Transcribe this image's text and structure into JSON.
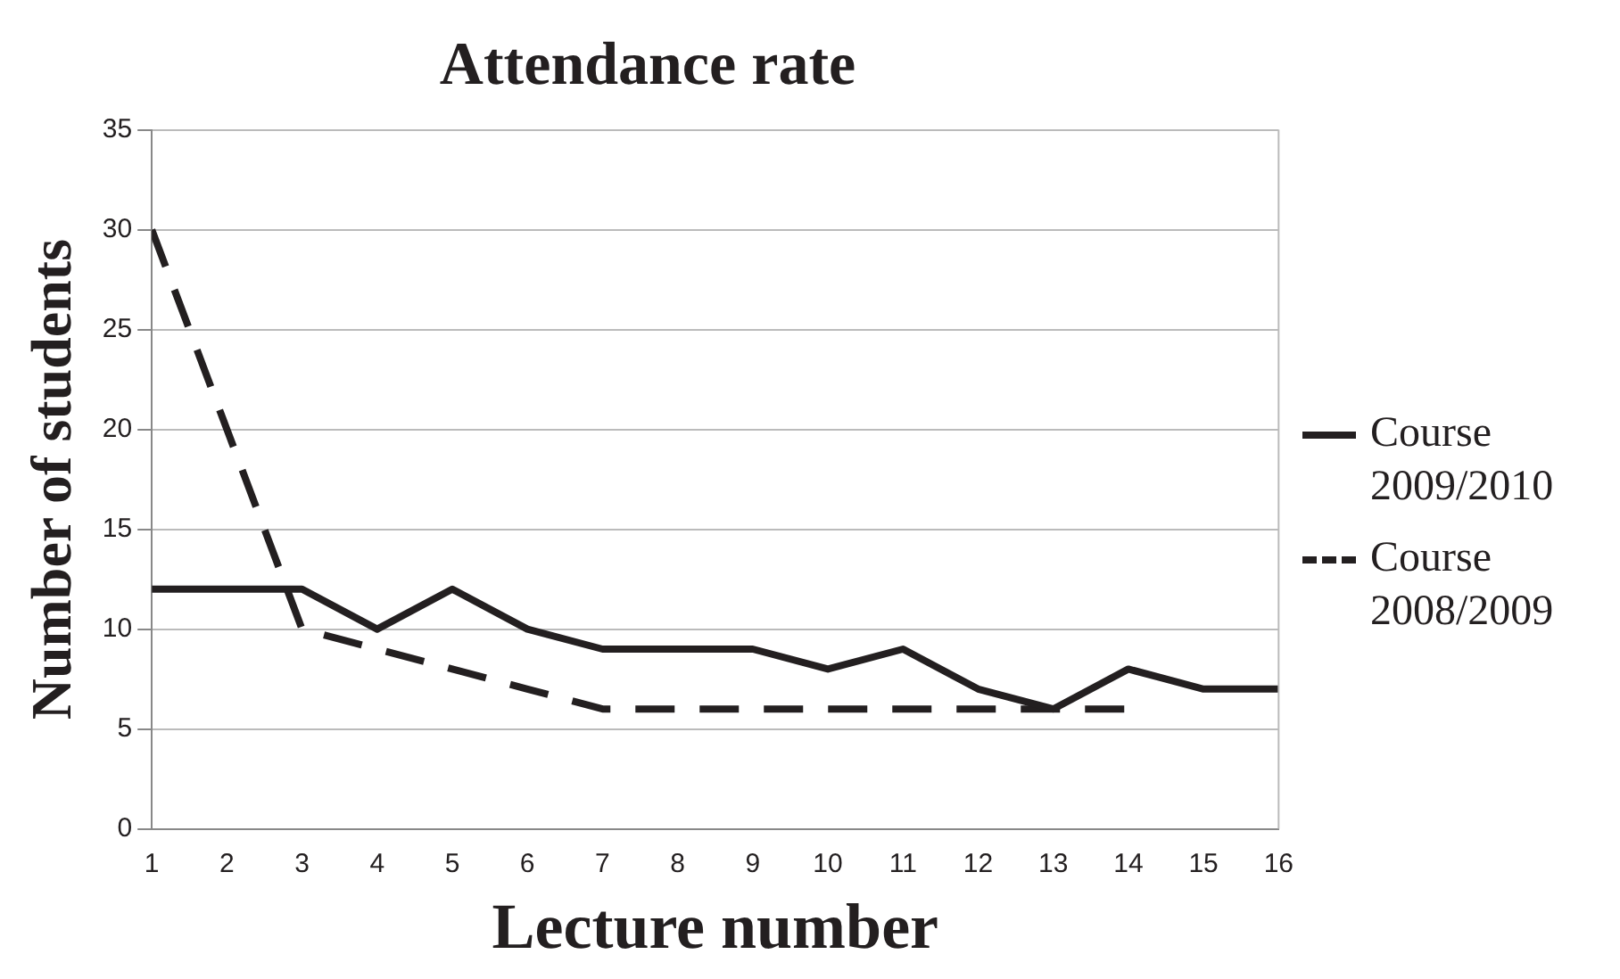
{
  "chart_data": {
    "type": "line",
    "title": "Attendance rate",
    "xlabel": "Lecture number",
    "ylabel": "Number of students",
    "x": [
      1,
      2,
      3,
      4,
      5,
      6,
      7,
      8,
      9,
      10,
      11,
      12,
      13,
      14,
      15,
      16
    ],
    "series": [
      {
        "name": "Course 2009/2010",
        "color": "#231f20",
        "line_style": "solid",
        "values": [
          12,
          12,
          12,
          10,
          12,
          10,
          9,
          9,
          9,
          8,
          9,
          7,
          6,
          8,
          7,
          7
        ]
      },
      {
        "name": "Course 2008/2009",
        "color": "#231f20",
        "line_style": "dashed",
        "values": [
          30,
          20,
          10,
          9,
          8,
          7,
          6,
          6,
          6,
          6,
          6,
          6,
          6,
          6,
          null,
          null
        ]
      }
    ],
    "xlim": [
      1,
      16
    ],
    "xticks": [
      1,
      2,
      3,
      4,
      5,
      6,
      7,
      8,
      9,
      10,
      11,
      12,
      13,
      14,
      15,
      16
    ],
    "ylim": [
      0,
      35
    ],
    "yticks": [
      0,
      5,
      10,
      15,
      20,
      25,
      30,
      35
    ],
    "grid": "y",
    "legend": "right",
    "marker": "none"
  }
}
